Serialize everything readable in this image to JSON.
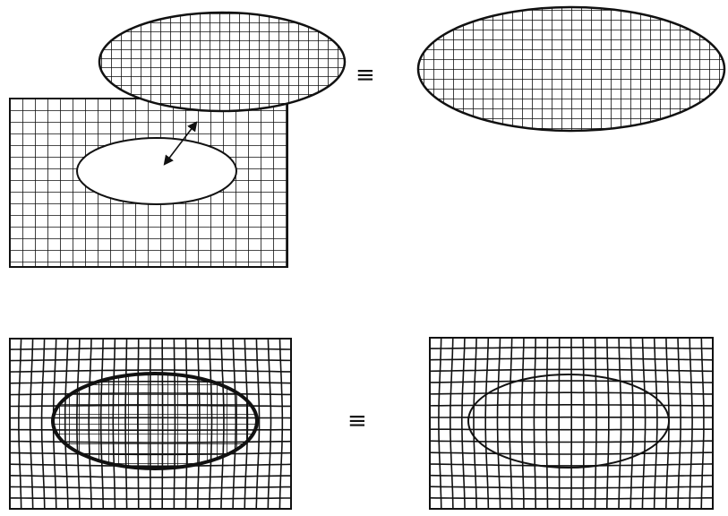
{
  "symbols": {
    "equivalence_top": "≡",
    "equivalence_bottom": "≡"
  },
  "colors": {
    "ink": "#111111",
    "background": "#ffffff"
  },
  "icons": {
    "double_arrow": "double-headed-arrow"
  }
}
